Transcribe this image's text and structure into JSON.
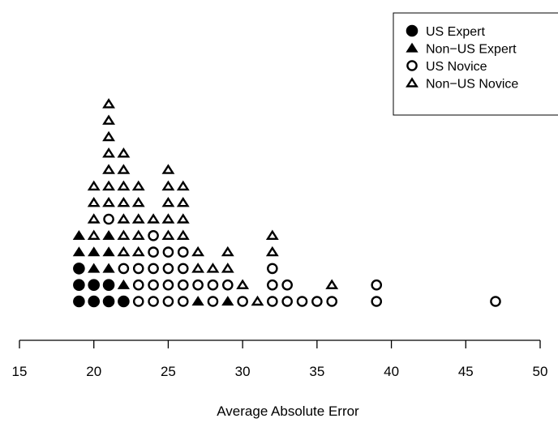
{
  "chart_data": {
    "type": "scatter",
    "subtype": "stacked dot plot",
    "title": "",
    "xlabel": "Average Absolute Error",
    "ylabel": "",
    "xlim": [
      15,
      50
    ],
    "x_ticks": [
      15,
      20,
      25,
      30,
      35,
      40,
      45,
      50
    ],
    "x_tick_labels": [
      "15",
      "20",
      "25",
      "30",
      "35",
      "40",
      "45",
      "50"
    ],
    "legend": {
      "placement": "top-right",
      "entries": [
        {
          "name": "US Expert",
          "marker": "filled-circle"
        },
        {
          "name": "Non−US Expert",
          "marker": "filled-triangle"
        },
        {
          "name": "US Novice",
          "marker": "open-circle"
        },
        {
          "name": "Non−US Novice",
          "marker": "open-triangle"
        }
      ]
    },
    "grid": false,
    "stacks": [
      {
        "x": 19,
        "markers": [
          "us-expert",
          "us-expert",
          "us-expert",
          "non-us-expert",
          "non-us-expert"
        ]
      },
      {
        "x": 20,
        "markers": [
          "us-expert",
          "us-expert",
          "non-us-expert",
          "non-us-expert",
          "non-us-novice",
          "non-us-novice",
          "non-us-novice",
          "non-us-novice"
        ]
      },
      {
        "x": 21,
        "markers": [
          "us-expert",
          "us-expert",
          "non-us-expert",
          "non-us-expert",
          "non-us-expert",
          "us-novice",
          "non-us-novice",
          "non-us-novice",
          "non-us-novice",
          "non-us-novice",
          "non-us-novice",
          "non-us-novice",
          "non-us-novice"
        ]
      },
      {
        "x": 22,
        "markers": [
          "us-expert",
          "non-us-expert",
          "us-novice",
          "non-us-novice",
          "non-us-novice",
          "non-us-novice",
          "non-us-novice",
          "non-us-novice",
          "non-us-novice",
          "non-us-novice"
        ]
      },
      {
        "x": 23,
        "markers": [
          "us-novice",
          "us-novice",
          "us-novice",
          "non-us-novice",
          "non-us-novice",
          "non-us-novice",
          "non-us-novice",
          "non-us-novice"
        ]
      },
      {
        "x": 24,
        "markers": [
          "us-novice",
          "us-novice",
          "us-novice",
          "us-novice",
          "us-novice",
          "non-us-novice"
        ]
      },
      {
        "x": 25,
        "markers": [
          "us-novice",
          "us-novice",
          "us-novice",
          "us-novice",
          "non-us-novice",
          "non-us-novice",
          "non-us-novice",
          "non-us-novice",
          "non-us-novice"
        ]
      },
      {
        "x": 26,
        "markers": [
          "us-novice",
          "us-novice",
          "us-novice",
          "us-novice",
          "non-us-novice",
          "non-us-novice",
          "non-us-novice",
          "non-us-novice"
        ]
      },
      {
        "x": 27,
        "markers": [
          "non-us-expert",
          "us-novice",
          "non-us-novice",
          "non-us-novice"
        ]
      },
      {
        "x": 28,
        "markers": [
          "us-novice",
          "us-novice",
          "non-us-novice"
        ]
      },
      {
        "x": 29,
        "markers": [
          "non-us-expert",
          "us-novice",
          "non-us-novice",
          "non-us-novice"
        ]
      },
      {
        "x": 30,
        "markers": [
          "us-novice",
          "non-us-novice"
        ]
      },
      {
        "x": 31,
        "markers": [
          "non-us-novice"
        ]
      },
      {
        "x": 32,
        "markers": [
          "us-novice",
          "us-novice",
          "us-novice",
          "non-us-novice",
          "non-us-novice"
        ]
      },
      {
        "x": 33,
        "markers": [
          "us-novice",
          "us-novice"
        ]
      },
      {
        "x": 34,
        "markers": [
          "us-novice"
        ]
      },
      {
        "x": 35,
        "markers": [
          "us-novice"
        ]
      },
      {
        "x": 36,
        "markers": [
          "us-novice",
          "non-us-novice"
        ]
      },
      {
        "x": 39,
        "markers": [
          "us-novice",
          "us-novice"
        ]
      },
      {
        "x": 47,
        "markers": [
          "us-novice"
        ]
      }
    ]
  }
}
